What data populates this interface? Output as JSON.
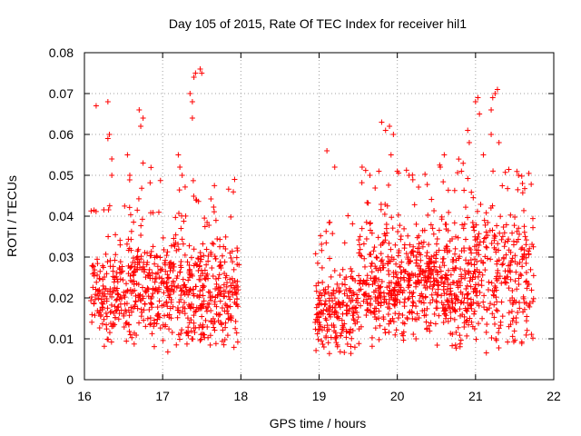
{
  "chart_data": {
    "type": "scatter",
    "title": "Day 105 of 2015, Rate Of TEC Index for receiver hil1",
    "xlabel": "GPS time / hours",
    "ylabel": "ROTI / TECUs",
    "xlim": [
      16,
      22
    ],
    "ylim": [
      0,
      0.08
    ],
    "xticks": [
      16,
      17,
      18,
      19,
      20,
      21,
      22
    ],
    "yticks": [
      0,
      0.01,
      0.02,
      0.03,
      0.04,
      0.05,
      0.06,
      0.07,
      0.08
    ],
    "ytick_labels": [
      "0",
      "0.01",
      "0.02",
      "0.03",
      "0.04",
      "0.05",
      "0.06",
      "0.07",
      "0.08"
    ],
    "grid": true,
    "marker": "+",
    "series_color": "#ff0000",
    "legend": null,
    "data_gap": [
      18.0,
      18.95
    ],
    "density_model": {
      "segments": [
        [
          16.08,
          17.98
        ],
        [
          18.95,
          21.75
        ]
      ],
      "bins": [
        {
          "x": [
            16.08,
            16.55
          ],
          "low": 0.007,
          "high": 0.032,
          "n": 150
        },
        {
          "x": [
            16.55,
            17.0
          ],
          "low": 0.006,
          "high": 0.04,
          "n": 170
        },
        {
          "x": [
            17.0,
            17.5
          ],
          "low": 0.006,
          "high": 0.038,
          "n": 200
        },
        {
          "x": [
            17.5,
            17.98
          ],
          "low": 0.006,
          "high": 0.036,
          "n": 180
        },
        {
          "x": [
            18.95,
            19.5
          ],
          "low": 0.005,
          "high": 0.03,
          "n": 190
        },
        {
          "x": [
            19.5,
            20.0
          ],
          "low": 0.007,
          "high": 0.04,
          "n": 210
        },
        {
          "x": [
            20.0,
            20.5
          ],
          "low": 0.008,
          "high": 0.04,
          "n": 220
        },
        {
          "x": [
            20.5,
            21.0
          ],
          "low": 0.006,
          "high": 0.042,
          "n": 230
        },
        {
          "x": [
            21.0,
            21.75
          ],
          "low": 0.006,
          "high": 0.045,
          "n": 250
        }
      ]
    },
    "points": [
      [
        16.15,
        0.067
      ],
      [
        16.3,
        0.068
      ],
      [
        16.3,
        0.059
      ],
      [
        16.32,
        0.06
      ],
      [
        16.35,
        0.054
      ],
      [
        16.35,
        0.05
      ],
      [
        16.55,
        0.055
      ],
      [
        16.58,
        0.05
      ],
      [
        16.7,
        0.066
      ],
      [
        16.72,
        0.062
      ],
      [
        16.75,
        0.064
      ],
      [
        16.75,
        0.053
      ],
      [
        17.2,
        0.055
      ],
      [
        17.22,
        0.052
      ],
      [
        17.25,
        0.05
      ],
      [
        17.35,
        0.07
      ],
      [
        17.38,
        0.068
      ],
      [
        17.4,
        0.074
      ],
      [
        17.42,
        0.075
      ],
      [
        17.48,
        0.076
      ],
      [
        17.5,
        0.075
      ],
      [
        17.38,
        0.064
      ],
      [
        17.92,
        0.049
      ],
      [
        19.1,
        0.056
      ],
      [
        19.2,
        0.052
      ],
      [
        19.55,
        0.052
      ],
      [
        19.65,
        0.05
      ],
      [
        19.8,
        0.063
      ],
      [
        19.85,
        0.061
      ],
      [
        19.9,
        0.062
      ],
      [
        19.95,
        0.06
      ],
      [
        19.92,
        0.055
      ],
      [
        20.0,
        0.051
      ],
      [
        20.15,
        0.05
      ],
      [
        20.55,
        0.052
      ],
      [
        20.6,
        0.055
      ],
      [
        20.82,
        0.051
      ],
      [
        20.9,
        0.061
      ],
      [
        20.92,
        0.058
      ],
      [
        21.0,
        0.068
      ],
      [
        21.03,
        0.069
      ],
      [
        21.05,
        0.065
      ],
      [
        21.1,
        0.055
      ],
      [
        21.2,
        0.066
      ],
      [
        21.22,
        0.069
      ],
      [
        21.25,
        0.07
      ],
      [
        21.28,
        0.071
      ],
      [
        21.2,
        0.06
      ],
      [
        21.3,
        0.058
      ],
      [
        21.55,
        0.05
      ],
      [
        21.6,
        0.048
      ]
    ]
  }
}
